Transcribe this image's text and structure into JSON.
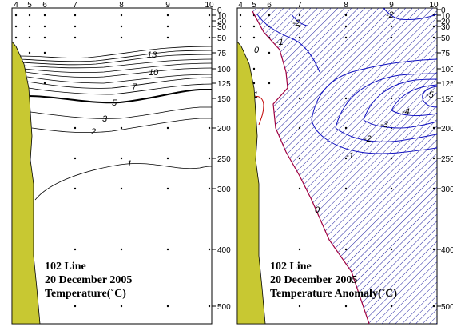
{
  "left_panel": {
    "station_labels": [
      "4",
      "5",
      "6",
      "7",
      "8",
      "9",
      "10"
    ],
    "depth_ticks": [
      "0",
      "10",
      "20",
      "30",
      "50",
      "75",
      "100",
      "125",
      "150",
      "200",
      "250",
      "300",
      "400",
      "500"
    ],
    "contour_labels": [
      "13",
      "10",
      "7",
      "5",
      "3",
      "2",
      "1"
    ],
    "caption": [
      "102 Line",
      "20 December 2005",
      "Temperature(˚C)"
    ]
  },
  "right_panel": {
    "station_labels": [
      "4",
      "5",
      "6",
      "7",
      "8",
      "9",
      "10"
    ],
    "depth_ticks": [
      "0",
      "10",
      "20",
      "30",
      "50",
      "75",
      "100",
      "125",
      "150",
      "200",
      "250",
      "300",
      "400",
      "500"
    ],
    "contour_labels": [
      "-2",
      "-2",
      "-1",
      "0",
      "1",
      "-5",
      "-4",
      "-3",
      "-2",
      "-1",
      "0"
    ],
    "caption": [
      "102 Line",
      "20 December  2005",
      "Temperature Anomaly(˚C)"
    ]
  },
  "colors": {
    "land": "#c8c832",
    "hatch": "#2020a0",
    "negative_contour": "#1010c0",
    "zero_contour": "#a00040",
    "positive_contour": "#c00000"
  }
}
